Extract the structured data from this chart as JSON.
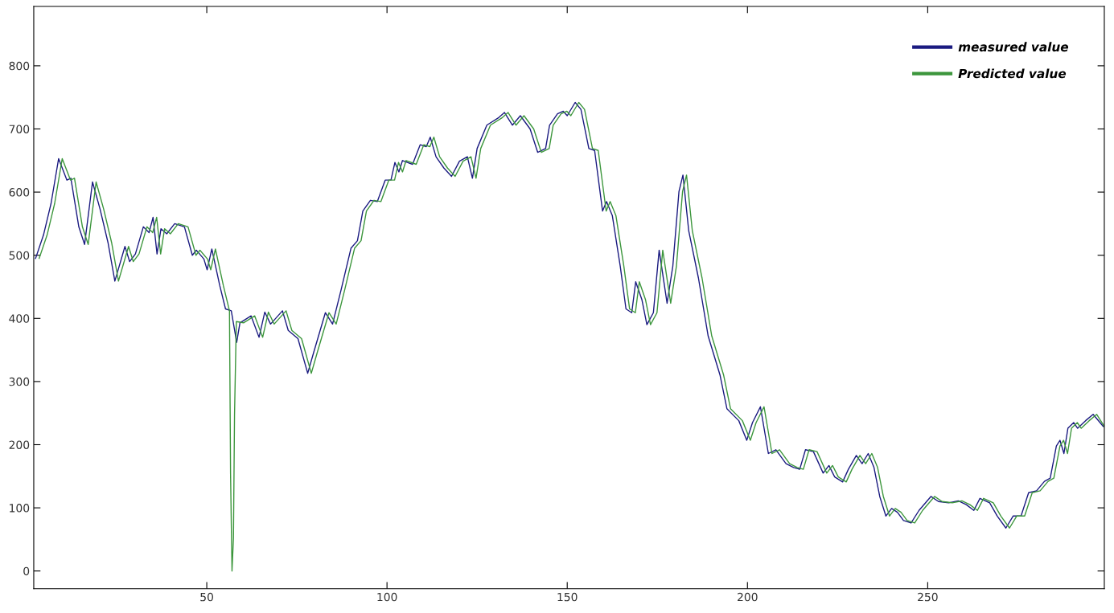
{
  "chart_data": {
    "type": "line",
    "xlim": [
      2,
      299
    ],
    "ylim": [
      -28,
      894
    ],
    "xticks": [
      50,
      100,
      150,
      200,
      250
    ],
    "yticks": [
      0,
      100,
      200,
      300,
      400,
      500,
      600,
      700,
      800
    ],
    "grid": false,
    "legend": "top right",
    "marker": "none",
    "line_style": "solid",
    "series": [
      {
        "name": "measured value",
        "color": "#1a1a80",
        "x": [
          2.5,
          4.7,
          6.8,
          8.9,
          11.2,
          12.3,
          14.5,
          16.1,
          18.3,
          20.4,
          22.6,
          24.5,
          27.3,
          28.6,
          30.2,
          32.4,
          34.0,
          35.1,
          36.2,
          37.3,
          38.9,
          41.1,
          43.8,
          46.0,
          47.1,
          49.2,
          50.1,
          51.4,
          53.6,
          55.2,
          56.8,
          58.3,
          59.2,
          62.3,
          64.5,
          66.1,
          67.7,
          71.0,
          72.6,
          75.3,
          78.0,
          79.7,
          82.9,
          84.9,
          87.3,
          90.0,
          91.8,
          93.3,
          95.4,
          97.3,
          99.5,
          101.1,
          102.2,
          103.3,
          104.3,
          107.1,
          109.2,
          110.9,
          112.0,
          113.6,
          115.8,
          117.9,
          120.1,
          122.3,
          123.7,
          125.0,
          127.7,
          131.0,
          132.6,
          134.8,
          137.0,
          139.7,
          141.8,
          144.0,
          145.1,
          147.3,
          148.9,
          150.0,
          152.2,
          153.8,
          156.0,
          157.6,
          159.8,
          160.9,
          162.5,
          164.7,
          166.3,
          167.9,
          169.0,
          170.7,
          172.1,
          173.9,
          175.5,
          177.7,
          179.3,
          181.0,
          182.1,
          183.7,
          186.4,
          189.1,
          192.4,
          194.3,
          197.6,
          199.8,
          201.4,
          203.6,
          205.8,
          207.9,
          210.7,
          212.8,
          214.5,
          216.1,
          218.3,
          221.0,
          222.6,
          224.2,
          226.4,
          228.0,
          230.2,
          231.8,
          233.5,
          235.1,
          236.7,
          238.4,
          240.0,
          241.6,
          243.3,
          245.4,
          247.6,
          250.9,
          253.0,
          255.8,
          258.5,
          260.7,
          262.8,
          264.5,
          267.2,
          269.3,
          271.7,
          273.7,
          275.9,
          278.0,
          280.2,
          282.4,
          284.0,
          285.7,
          286.7,
          287.8,
          288.9,
          290.5,
          291.6,
          293.8,
          295.9,
          298.7
        ],
        "values": [
          495,
          532,
          582,
          653,
          619,
          622,
          545,
          517,
          616,
          573,
          520,
          459,
          514,
          490,
          502,
          545,
          536,
          560,
          502,
          542,
          534,
          550,
          545,
          500,
          508,
          494,
          477,
          510,
          452,
          415,
          412,
          362,
          393,
          404,
          370,
          410,
          391,
          412,
          381,
          368,
          313,
          347,
          409,
          391,
          446,
          511,
          523,
          570,
          587,
          585,
          619,
          619,
          647,
          632,
          650,
          644,
          675,
          672,
          687,
          656,
          638,
          625,
          649,
          656,
          622,
          669,
          706,
          718,
          726,
          706,
          721,
          700,
          663,
          669,
          706,
          724,
          728,
          721,
          742,
          731,
          669,
          666,
          570,
          585,
          563,
          483,
          415,
          409,
          458,
          430,
          390,
          409,
          508,
          424,
          483,
          601,
          627,
          539,
          464,
          372,
          310,
          257,
          238,
          207,
          235,
          260,
          186,
          192,
          170,
          164,
          161,
          192,
          189,
          155,
          167,
          149,
          141,
          161,
          183,
          170,
          186,
          164,
          118,
          87,
          99,
          93,
          80,
          76,
          96,
          118,
          110,
          108,
          111,
          105,
          96,
          115,
          108,
          87,
          68,
          87,
          87,
          124,
          127,
          142,
          147,
          198,
          207,
          186,
          226,
          235,
          226,
          238,
          248,
          229
        ]
      },
      {
        "name": "Predicted value",
        "color": "#3c963c",
        "x": [
          3.5,
          5.7,
          7.8,
          9.9,
          12.2,
          13.3,
          15.5,
          17.1,
          19.3,
          21.4,
          23.6,
          25.5,
          28.3,
          29.6,
          31.2,
          33.4,
          35.0,
          36.1,
          37.2,
          38.3,
          39.9,
          42.1,
          44.8,
          47.0,
          48.1,
          50.2,
          51.1,
          52.4,
          54.6,
          56.3,
          56.6,
          57.0,
          57.4,
          57.7,
          58.2,
          60.2,
          63.3,
          65.5,
          67.1,
          68.7,
          72.0,
          73.6,
          76.3,
          79.0,
          80.7,
          83.9,
          85.9,
          88.3,
          91.0,
          92.8,
          94.3,
          96.4,
          98.3,
          100.5,
          102.1,
          103.2,
          104.3,
          105.3,
          108.1,
          110.2,
          111.9,
          113.0,
          114.6,
          116.8,
          118.9,
          121.1,
          123.3,
          124.7,
          126.0,
          128.7,
          132.0,
          133.6,
          135.8,
          138.0,
          140.7,
          142.8,
          145.0,
          146.1,
          148.3,
          149.9,
          151.0,
          153.2,
          154.8,
          157.0,
          158.6,
          160.8,
          161.9,
          163.5,
          165.7,
          167.3,
          168.9,
          170.0,
          171.7,
          173.1,
          174.9,
          176.5,
          178.7,
          180.3,
          182.0,
          183.1,
          184.7,
          187.4,
          190.1,
          193.4,
          195.3,
          198.6,
          200.8,
          202.4,
          204.6,
          206.8,
          208.9,
          211.7,
          213.8,
          215.5,
          217.1,
          219.3,
          222.0,
          223.6,
          225.2,
          227.4,
          229.0,
          231.2,
          232.8,
          234.5,
          236.1,
          237.7,
          239.4,
          241.0,
          242.6,
          244.3,
          246.4,
          248.6,
          251.9,
          254.0,
          256.8,
          259.5,
          261.7,
          263.8,
          265.5,
          268.2,
          270.3,
          272.7,
          274.7,
          276.9,
          279.0,
          281.2,
          283.4,
          285.0,
          286.7,
          287.7,
          288.8,
          289.9,
          291.5,
          292.6,
          294.8,
          296.9,
          299.0
        ],
        "values": [
          495,
          532,
          582,
          653,
          619,
          622,
          545,
          517,
          616,
          573,
          520,
          459,
          514,
          490,
          502,
          545,
          536,
          560,
          502,
          542,
          534,
          550,
          545,
          500,
          508,
          494,
          477,
          510,
          452,
          412,
          154,
          0,
          52,
          247,
          395,
          393,
          404,
          370,
          410,
          391,
          412,
          381,
          368,
          313,
          347,
          409,
          391,
          446,
          511,
          523,
          570,
          587,
          585,
          619,
          619,
          647,
          632,
          650,
          644,
          675,
          672,
          687,
          656,
          638,
          625,
          649,
          656,
          622,
          669,
          706,
          718,
          726,
          706,
          721,
          700,
          663,
          669,
          706,
          724,
          728,
          721,
          742,
          731,
          669,
          666,
          570,
          585,
          563,
          483,
          415,
          409,
          458,
          430,
          390,
          409,
          508,
          424,
          483,
          601,
          627,
          539,
          464,
          372,
          310,
          257,
          238,
          207,
          235,
          260,
          186,
          192,
          170,
          164,
          161,
          192,
          189,
          155,
          167,
          149,
          141,
          161,
          183,
          170,
          186,
          164,
          118,
          87,
          99,
          93,
          80,
          76,
          96,
          118,
          110,
          108,
          111,
          105,
          96,
          115,
          108,
          87,
          68,
          87,
          87,
          124,
          127,
          142,
          147,
          198,
          207,
          186,
          226,
          235,
          226,
          238,
          248,
          229
        ]
      }
    ]
  }
}
